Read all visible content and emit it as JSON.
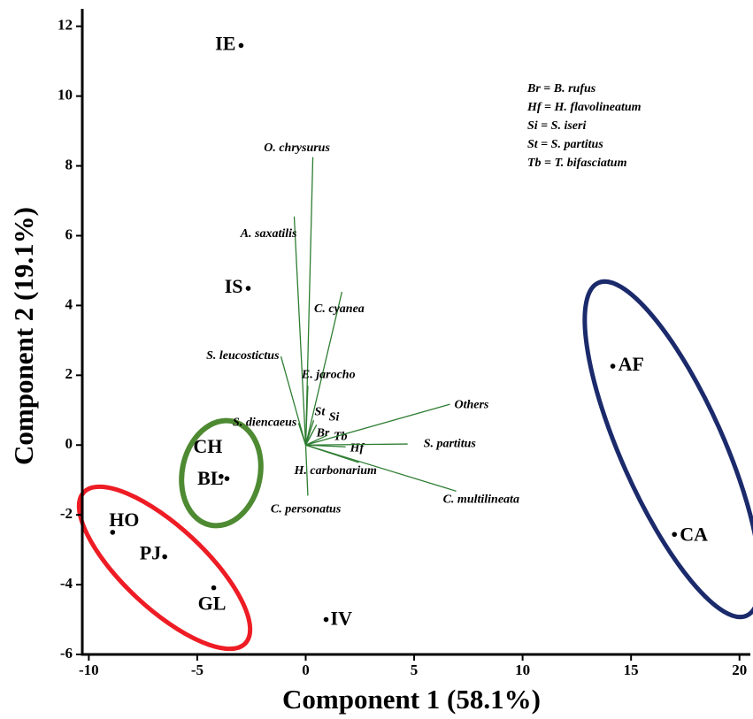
{
  "chart_data": {
    "type": "biplot",
    "x_label": "Component 1 (58.1%)",
    "y_label": "Component 2 (19.1%)",
    "xlim": [
      -10.3,
      20.5
    ],
    "ylim": [
      -6,
      12.5
    ],
    "xticks": [
      -10,
      -5,
      0,
      5,
      10,
      15,
      20
    ],
    "yticks": [
      -6,
      -4,
      -2,
      0,
      2,
      4,
      6,
      8,
      10,
      12
    ],
    "legend_lines": [
      "Br = B. rufus",
      "Hf = H. flavolineatum",
      "Si = S. iseri",
      "St = S. partitus",
      "Tb = T. bifasciatum"
    ],
    "loading_color": "#2e7d32",
    "points": [
      {
        "label": "IE",
        "x": -2.98,
        "y": 11.45
      },
      {
        "label": "IS",
        "x": -2.65,
        "y": 4.49
      },
      {
        "label": "AF",
        "x": 14.16,
        "y": 2.26
      },
      {
        "label": "CA",
        "x": 17.0,
        "y": -2.56
      },
      {
        "label": "CH",
        "x": -3.9,
        "y": -0.9
      },
      {
        "label": "BL",
        "x": -3.63,
        "y": -0.96
      },
      {
        "label": "HO",
        "x": -8.9,
        "y": -2.5
      },
      {
        "label": "PJ",
        "x": -6.5,
        "y": -3.2
      },
      {
        "label": "GL",
        "x": -4.24,
        "y": -4.09
      },
      {
        "label": "IV",
        "x": 0.94,
        "y": -5.0
      }
    ],
    "loadings": [
      {
        "label": "O. chrysurus",
        "x": 0.33,
        "y": 8.25
      },
      {
        "label": "A. saxatilis",
        "x": -0.53,
        "y": 6.55
      },
      {
        "label": "C. cyanea",
        "x": 1.67,
        "y": 4.39
      },
      {
        "label": "S. leucostictus",
        "x": -1.14,
        "y": 2.54
      },
      {
        "label": "E. jarocho",
        "x": 0.1,
        "y": 1.7
      },
      {
        "label": "S. diencaeus",
        "x": -0.33,
        "y": 0.63
      },
      {
        "label": "St",
        "x": 0.37,
        "y": 0.71
      },
      {
        "label": "Si",
        "x": 0.5,
        "y": 0.58
      },
      {
        "label": "Br",
        "x": 0.33,
        "y": 0.38
      },
      {
        "label": "Tb",
        "x": 1.0,
        "y": 0.28
      },
      {
        "label": "Hf",
        "x": 1.84,
        "y": -0.05
      },
      {
        "label": "Others",
        "x": 6.65,
        "y": 1.17
      },
      {
        "label": "S. partitus",
        "x": 4.7,
        "y": 0.03
      },
      {
        "label": "C. multilineata",
        "x": 6.94,
        "y": -1.32
      },
      {
        "label": "H. carbonarium",
        "x": 2.45,
        "y": -0.5
      },
      {
        "label": "C. personatus",
        "x": 0.1,
        "y": -1.45
      }
    ]
  }
}
